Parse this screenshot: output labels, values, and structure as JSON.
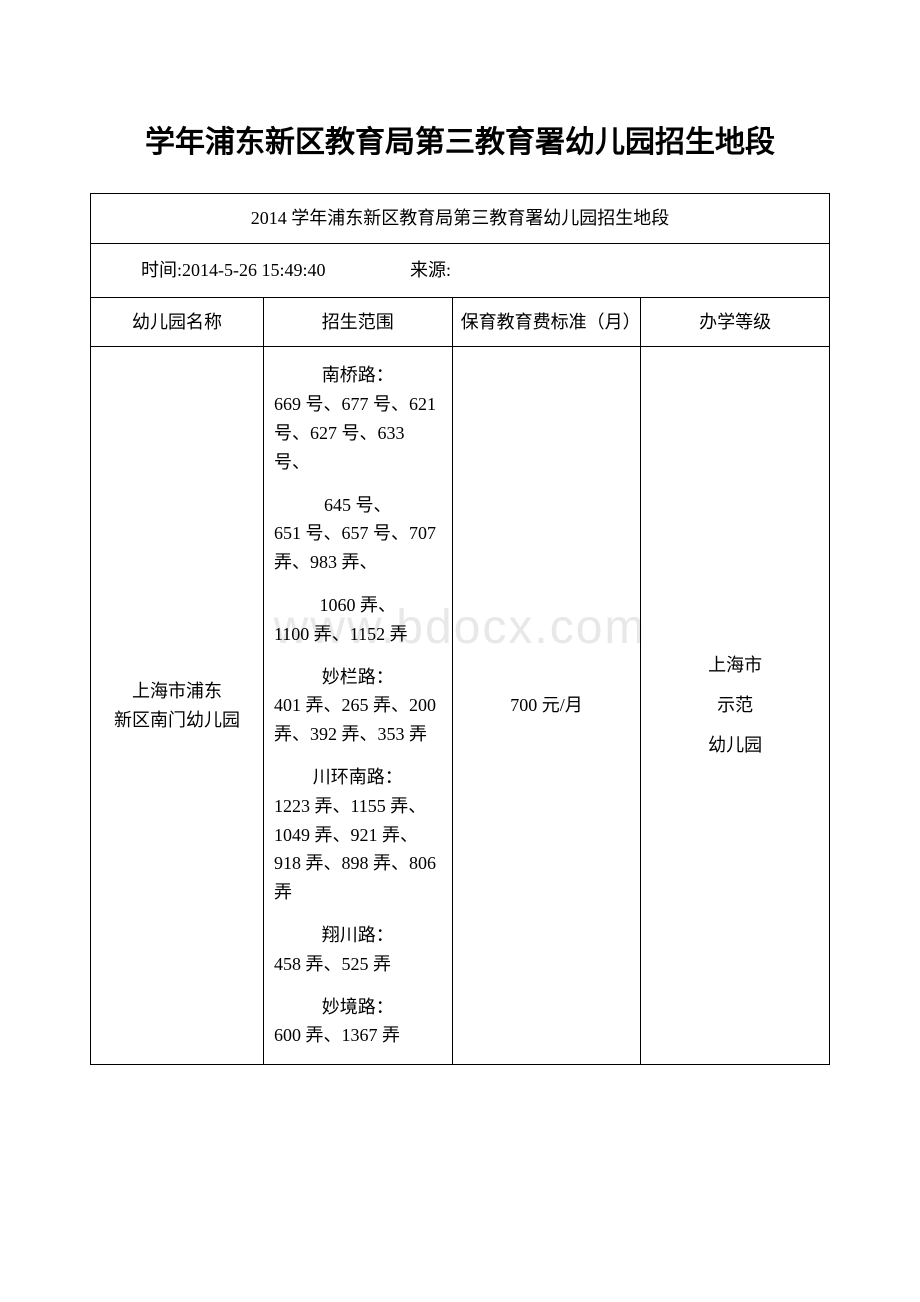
{
  "page_title": "学年浦东新区教育局第三教育署幼儿园招生地段",
  "watermark": "www.bdocx.com",
  "header_row": "2014 学年浦东新区教育局第三教育署幼儿园招生地段",
  "meta": {
    "time_label": "时间:",
    "time_value": "2014-5-26 15:49:40",
    "source_label": "来源:",
    "source_value": ""
  },
  "columns": {
    "name": "幼儿园名称",
    "scope": "招生范围",
    "fee": "保育教育费标准（月）",
    "level": "办学等级"
  },
  "row": {
    "name_line1": "上海市浦东",
    "name_line2": "新区南门幼儿园",
    "scope": [
      {
        "label": "南桥路：",
        "text": "669 号、677 号、621 号、627 号、633 号、"
      },
      {
        "label": "645 号、",
        "text": "651 号、657 号、707 弄、983 弄、"
      },
      {
        "label": "1060 弄、",
        "text": "1100 弄、1152 弄"
      },
      {
        "label": "妙栏路：",
        "text": "401 弄、265 弄、200 弄、392 弄、353 弄"
      },
      {
        "label": "川环南路：",
        "text": "1223 弄、1155 弄、1049 弄、921 弄、918 弄、898 弄、806 弄"
      },
      {
        "label": "翔川路：",
        "text": "458 弄、525 弄"
      },
      {
        "label": "妙境路：",
        "text": "600 弄、1367 弄"
      }
    ],
    "fee": "700 元/月",
    "level_line1": "上海市",
    "level_line2": "示范",
    "level_line3": "幼儿园"
  },
  "style": {
    "background_color": "#ffffff",
    "border_color": "#000000",
    "text_color": "#000000",
    "watermark_color": "#e8e8e8",
    "title_fontsize": 30,
    "body_fontsize": 18
  }
}
